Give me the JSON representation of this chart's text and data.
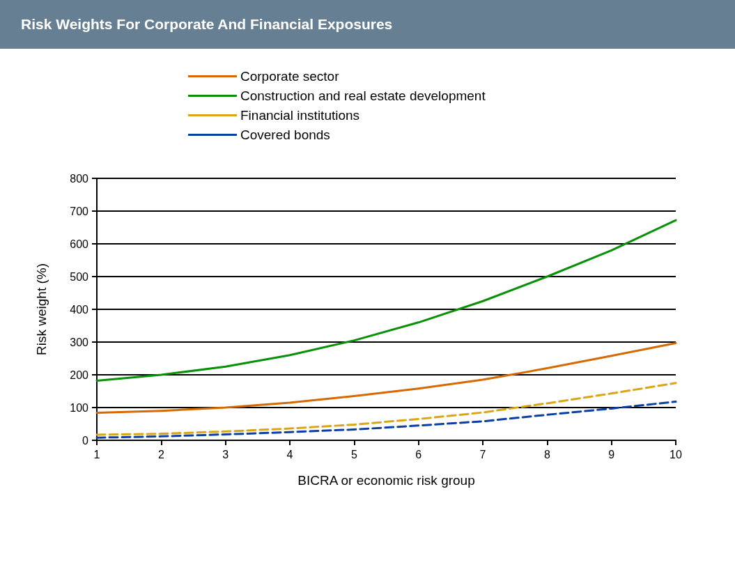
{
  "chart_data": {
    "type": "line",
    "title": "Risk Weights For Corporate And Financial Exposures",
    "xlabel": "BICRA or economic risk group",
    "ylabel": "Risk weight (%)",
    "x": [
      1,
      2,
      3,
      4,
      5,
      6,
      7,
      8,
      9,
      10
    ],
    "series": [
      {
        "name": "Corporate sector",
        "color": "#d66a00",
        "line_style": "solid",
        "values": [
          84,
          90,
          100,
          115,
          135,
          158,
          185,
          220,
          258,
          297
        ]
      },
      {
        "name": "Construction and real estate development",
        "color": "#079107",
        "line_style": "solid",
        "values": [
          182,
          200,
          225,
          260,
          305,
          360,
          425,
          500,
          580,
          672
        ]
      },
      {
        "name": "Financial institutions",
        "color": "#dba613",
        "line_style": "dashed",
        "values": [
          17,
          20,
          27,
          36,
          48,
          65,
          85,
          113,
          143,
          175
        ]
      },
      {
        "name": "Covered bonds",
        "color": "#0a3fa6",
        "line_style": "dashed",
        "values": [
          8,
          12,
          18,
          25,
          33,
          45,
          58,
          78,
          97,
          118
        ]
      }
    ],
    "xlim": [
      1,
      10
    ],
    "xticks": [
      1,
      2,
      3,
      4,
      5,
      6,
      7,
      8,
      9,
      10
    ],
    "ylim": [
      0,
      800
    ],
    "yticks": [
      0,
      100,
      200,
      300,
      400,
      500,
      600,
      700,
      800
    ],
    "grid": "y",
    "legend": "top",
    "marker": "none"
  }
}
